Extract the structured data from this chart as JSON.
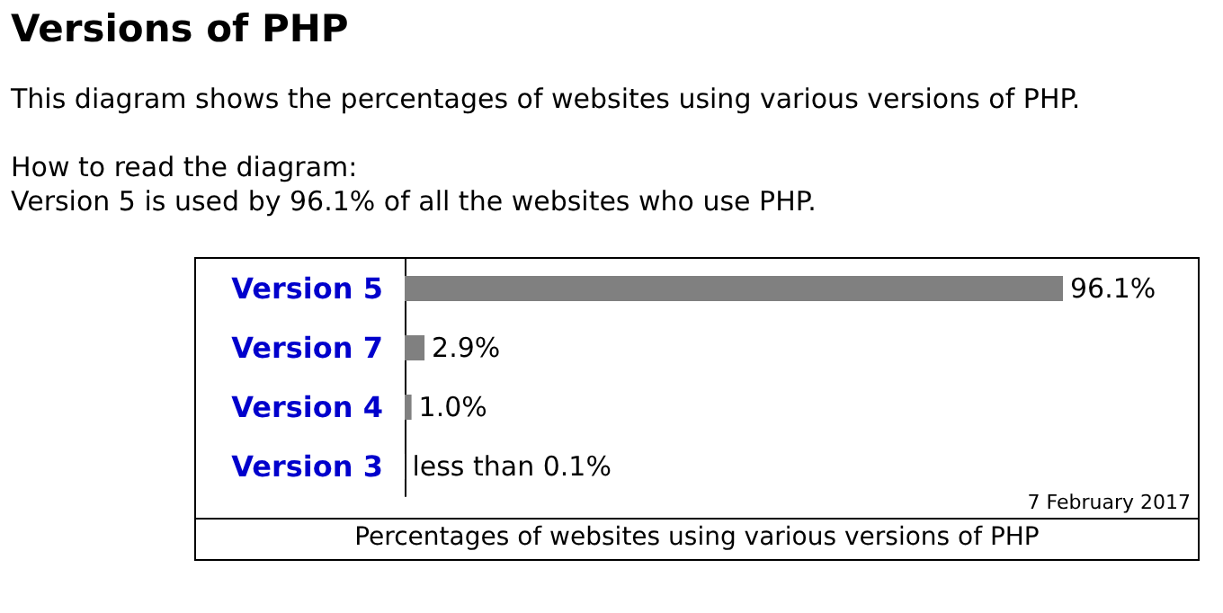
{
  "chart_data": {
    "type": "bar",
    "orientation": "horizontal",
    "title": "Versions of PHP",
    "subtitle": "This diagram shows the percentages of websites using various versions of PHP.",
    "annotations": [
      "How to read the diagram:",
      "Version 5 is used by 96.1% of all the websites who use PHP.",
      "7 February 2017"
    ],
    "xlabel": "Percentages of websites using various versions of PHP",
    "categories": [
      "Version 5",
      "Version 7",
      "Version 4",
      "Version 3"
    ],
    "values": [
      96.1,
      2.9,
      1.0,
      0.05
    ],
    "value_labels": [
      "96.1%",
      "2.9%",
      "1.0%",
      "less than 0.1%"
    ],
    "color": "#808080"
  }
}
